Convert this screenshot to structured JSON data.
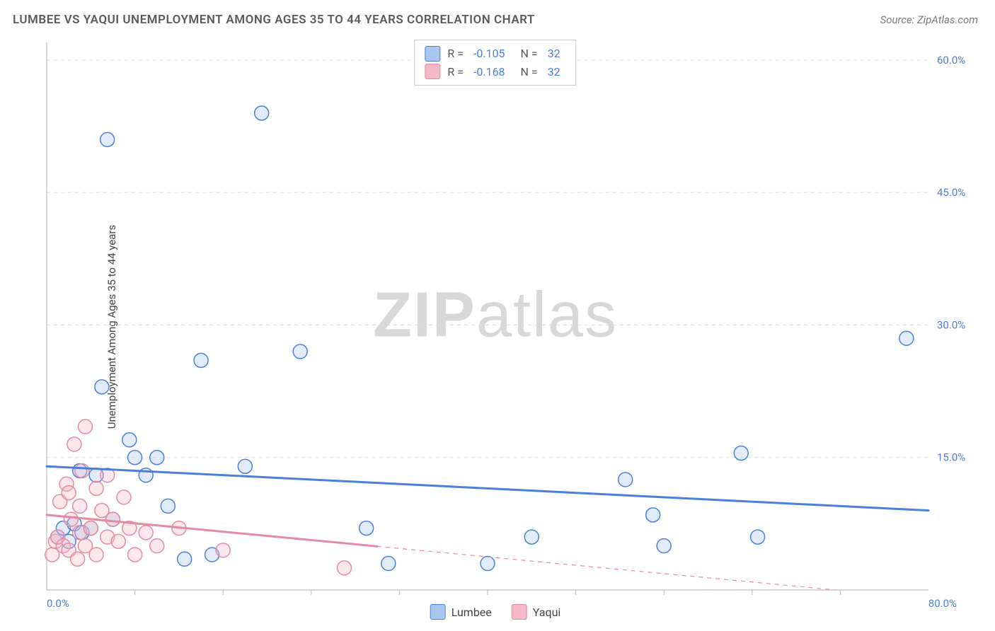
{
  "header": {
    "title": "LUMBEE VS YAQUI UNEMPLOYMENT AMONG AGES 35 TO 44 YEARS CORRELATION CHART",
    "source_prefix": "Source: ",
    "source_name": "ZipAtlas.com"
  },
  "watermark": {
    "zip": "ZIP",
    "atlas": "atlas"
  },
  "chart": {
    "type": "scatter-with-regression",
    "ylabel": "Unemployment Among Ages 35 to 44 years",
    "xlim": [
      0,
      80
    ],
    "ylim": [
      0,
      62
    ],
    "x_ticks_minor_step": 8,
    "y_gridlines": [
      15,
      30,
      45,
      60
    ],
    "x_tick_labels": {
      "left": "0.0%",
      "right": "80.0%"
    },
    "y_tick_labels": [
      "15.0%",
      "30.0%",
      "45.0%",
      "60.0%"
    ],
    "axis_label_color": "#4c7fd8",
    "axis_label_fontsize": 15,
    "grid_color": "#dddddd",
    "axis_line_color": "#bdbdbd",
    "background_color": "#ffffff",
    "marker_radius": 10,
    "marker_stroke_width": 1.5,
    "marker_fill_opacity": 0.35,
    "trend_line_width": 3,
    "series": [
      {
        "name": "Lumbee",
        "color_stroke": "#4c7fd8",
        "color_fill": "#a9c6ef",
        "R": "-0.105",
        "N": "32",
        "trend": {
          "x1": 0,
          "y1": 14.0,
          "x2": 80,
          "y2": 9.0,
          "dashed_from_x": null
        },
        "points": [
          [
            1.0,
            6.0
          ],
          [
            1.5,
            7.0
          ],
          [
            2.0,
            5.5
          ],
          [
            2.5,
            7.5
          ],
          [
            3.0,
            13.5
          ],
          [
            3.2,
            6.5
          ],
          [
            4.0,
            7.0
          ],
          [
            4.5,
            13.0
          ],
          [
            5.0,
            23.0
          ],
          [
            5.5,
            51.0
          ],
          [
            6.0,
            8.0
          ],
          [
            7.5,
            17.0
          ],
          [
            8.0,
            15.0
          ],
          [
            9.0,
            13.0
          ],
          [
            10.0,
            15.0
          ],
          [
            11.0,
            9.5
          ],
          [
            12.5,
            3.5
          ],
          [
            14.0,
            26.0
          ],
          [
            15.0,
            4.0
          ],
          [
            18.0,
            14.0
          ],
          [
            19.5,
            54.0
          ],
          [
            23.0,
            27.0
          ],
          [
            29.0,
            7.0
          ],
          [
            31.0,
            3.0
          ],
          [
            40.0,
            3.0
          ],
          [
            44.0,
            6.0
          ],
          [
            52.5,
            12.5
          ],
          [
            55.0,
            8.5
          ],
          [
            56.0,
            5.0
          ],
          [
            63.0,
            15.5
          ],
          [
            64.5,
            6.0
          ],
          [
            78.0,
            28.5
          ]
        ]
      },
      {
        "name": "Yaqui",
        "color_stroke": "#e58aa3",
        "color_fill": "#f3b9c9",
        "R": "-0.168",
        "N": "32",
        "trend": {
          "x1": 0,
          "y1": 8.5,
          "x2": 80,
          "y2": -1.0,
          "dashed_from_x": 30
        },
        "points": [
          [
            0.5,
            4.0
          ],
          [
            0.8,
            5.5
          ],
          [
            1.0,
            6.0
          ],
          [
            1.2,
            10.0
          ],
          [
            1.5,
            5.0
          ],
          [
            1.8,
            12.0
          ],
          [
            2.0,
            4.5
          ],
          [
            2.0,
            11.0
          ],
          [
            2.2,
            8.0
          ],
          [
            2.5,
            16.5
          ],
          [
            2.8,
            3.5
          ],
          [
            3.0,
            6.5
          ],
          [
            3.0,
            9.5
          ],
          [
            3.2,
            13.5
          ],
          [
            3.5,
            5.0
          ],
          [
            3.5,
            18.5
          ],
          [
            4.0,
            7.0
          ],
          [
            4.5,
            11.5
          ],
          [
            4.5,
            4.0
          ],
          [
            5.0,
            9.0
          ],
          [
            5.5,
            6.0
          ],
          [
            5.5,
            13.0
          ],
          [
            6.0,
            8.0
          ],
          [
            6.5,
            5.5
          ],
          [
            7.0,
            10.5
          ],
          [
            7.5,
            7.0
          ],
          [
            8.0,
            4.0
          ],
          [
            9.0,
            6.5
          ],
          [
            10.0,
            5.0
          ],
          [
            12.0,
            7.0
          ],
          [
            16.0,
            4.5
          ],
          [
            27.0,
            2.5
          ]
        ]
      }
    ],
    "legend_bottom": [
      {
        "label": "Lumbee",
        "fill": "#a9c6ef",
        "stroke": "#4c7fd8"
      },
      {
        "label": "Yaqui",
        "fill": "#f3b9c9",
        "stroke": "#e58aa3"
      }
    ]
  }
}
